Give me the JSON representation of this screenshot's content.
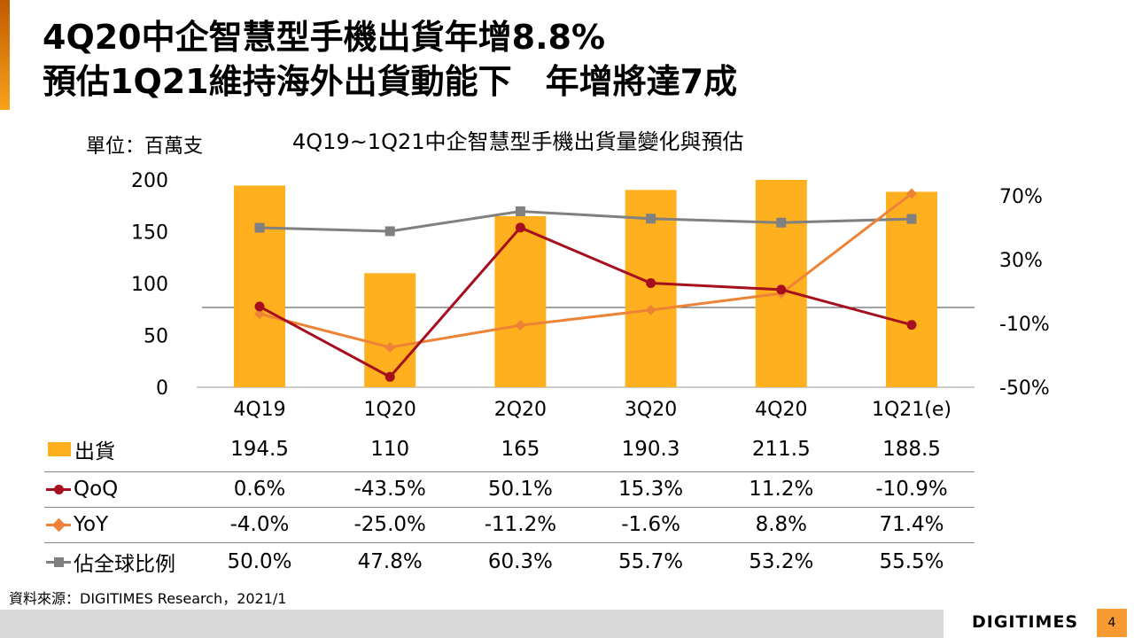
{
  "header": {
    "title_line1": "4Q20中企智慧型手機出貨年增8.8%",
    "title_line2": "預估1Q21維持海外出貨動能下　年增將達7成"
  },
  "chart_data": {
    "type": "bar+line",
    "title": "4Q19~1Q21中企智慧型手機出貨量變化與預估",
    "unit_label": "單位：百萬支",
    "categories": [
      "4Q19",
      "1Q20",
      "2Q20",
      "3Q20",
      "4Q20",
      "1Q21(e)"
    ],
    "left_axis": {
      "ylim": [
        0,
        200
      ],
      "ticks": [
        "0",
        "50",
        "100",
        "150",
        "200"
      ]
    },
    "right_axis": {
      "ylim": [
        -50,
        80
      ],
      "ticks": [
        "-50%",
        "-10%",
        "30%",
        "70%"
      ]
    },
    "series": [
      {
        "name": "出貨",
        "type": "bar",
        "axis": "left",
        "color": "#FFB01F",
        "values": [
          194.5,
          110,
          165,
          190.3,
          211.5,
          188.5
        ],
        "labels": [
          "194.5",
          "110",
          "165",
          "190.3",
          "211.5",
          "188.5"
        ]
      },
      {
        "name": "QoQ",
        "type": "line",
        "axis": "right",
        "marker": "circle",
        "color": "#A50F1E",
        "values": [
          0.6,
          -43.5,
          50.1,
          15.3,
          11.2,
          -10.9
        ],
        "labels": [
          "0.6%",
          "-43.5%",
          "50.1%",
          "15.3%",
          "11.2%",
          "-10.9%"
        ]
      },
      {
        "name": "YoY",
        "type": "line",
        "axis": "right",
        "marker": "diamond",
        "color": "#EE8335",
        "values": [
          -4.0,
          -25.0,
          -11.2,
          -1.6,
          8.8,
          71.4
        ],
        "labels": [
          "-4.0%",
          "-25.0%",
          "-11.2%",
          "-1.6%",
          "8.8%",
          "71.4%"
        ]
      },
      {
        "name": "佔全球比例",
        "type": "line",
        "axis": "right",
        "marker": "square",
        "color": "#808080",
        "values": [
          50.0,
          47.8,
          60.3,
          55.7,
          53.2,
          55.5
        ],
        "labels": [
          "50.0%",
          "47.8%",
          "60.3%",
          "55.7%",
          "53.2%",
          "55.5%"
        ]
      }
    ]
  },
  "source": "資料來源：DIGITIMES Research，2021/1",
  "footer": {
    "logo": "DIGITIMES",
    "page": "4"
  }
}
